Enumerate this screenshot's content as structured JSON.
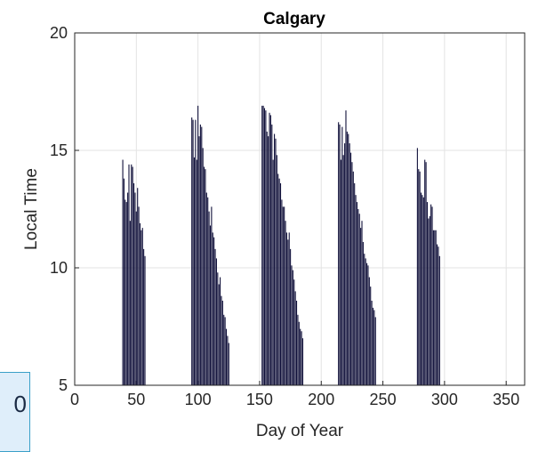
{
  "chart_data": {
    "type": "bar",
    "title": "Calgary",
    "xlabel": "Day of Year",
    "ylabel": "Local Time",
    "xlim": [
      0,
      365
    ],
    "ylim": [
      5,
      20
    ],
    "xticks": [
      0,
      50,
      100,
      150,
      200,
      250,
      300,
      350
    ],
    "yticks": [
      5,
      10,
      15,
      20
    ],
    "grid": true,
    "bar_color": "#10103a",
    "baseline": 5,
    "series": [
      {
        "x": [
          39,
          40,
          41,
          42,
          43,
          44,
          45,
          46,
          47,
          48,
          49,
          50,
          51,
          52,
          53,
          54,
          55,
          56,
          57,
          95,
          96,
          97,
          98,
          99,
          100,
          101,
          102,
          103,
          104,
          105,
          106,
          107,
          108,
          109,
          110,
          111,
          112,
          113,
          114,
          115,
          116,
          117,
          118,
          119,
          120,
          121,
          122,
          123,
          124,
          125,
          152,
          153,
          154,
          155,
          156,
          157,
          158,
          159,
          160,
          161,
          162,
          163,
          164,
          165,
          166,
          167,
          168,
          169,
          170,
          171,
          172,
          173,
          174,
          175,
          176,
          177,
          178,
          179,
          180,
          181,
          182,
          183,
          184,
          185,
          214,
          215,
          216,
          217,
          218,
          219,
          220,
          221,
          222,
          223,
          224,
          225,
          226,
          227,
          228,
          229,
          230,
          231,
          232,
          233,
          234,
          235,
          236,
          237,
          238,
          239,
          240,
          241,
          242,
          243,
          244,
          278,
          279,
          280,
          281,
          282,
          283,
          284,
          285,
          286,
          287,
          288,
          289,
          290,
          291,
          292,
          293,
          294,
          295,
          296
        ],
        "values": [
          14.6,
          13.8,
          12.9,
          12.8,
          13.2,
          14.4,
          12.0,
          14.4,
          14.3,
          13.6,
          13.2,
          12.4,
          13.4,
          12.6,
          11.9,
          11.6,
          11.7,
          10.8,
          10.5,
          16.4,
          16.3,
          14.7,
          16.3,
          14.6,
          16.9,
          15.6,
          16.1,
          16.0,
          15.1,
          14.3,
          14.2,
          13.2,
          13.0,
          12.4,
          11.8,
          12.6,
          11.5,
          11.3,
          10.8,
          10.4,
          9.8,
          9.3,
          9.6,
          8.8,
          8.6,
          8.0,
          7.9,
          7.4,
          7.1,
          6.8,
          16.9,
          16.9,
          16.8,
          16.7,
          15.8,
          15.6,
          16.6,
          16.5,
          16.1,
          14.6,
          15.7,
          15.5,
          14.8,
          14.0,
          13.8,
          13.6,
          12.9,
          12.6,
          12.6,
          12.0,
          11.5,
          11.2,
          11.5,
          10.8,
          10.1,
          9.9,
          9.5,
          9.0,
          8.6,
          8.0,
          7.7,
          7.4,
          7.3,
          7.0,
          16.2,
          16.1,
          14.6,
          16.0,
          14.8,
          15.3,
          16.7,
          15.8,
          15.7,
          15.3,
          14.9,
          14.5,
          14.1,
          13.6,
          13.1,
          12.8,
          12.5,
          12.3,
          11.7,
          12.0,
          11.1,
          10.6,
          10.4,
          10.2,
          10.1,
          9.6,
          9.2,
          8.6,
          8.3,
          8.2,
          7.9,
          15.1,
          14.2,
          14.1,
          13.2,
          13.1,
          13.0,
          14.6,
          14.5,
          12.8,
          12.1,
          12.2,
          12.7,
          12.6,
          11.6,
          11.6,
          11.6,
          11.0,
          10.9,
          10.5
        ]
      }
    ]
  },
  "overlay": {
    "text": "0"
  }
}
